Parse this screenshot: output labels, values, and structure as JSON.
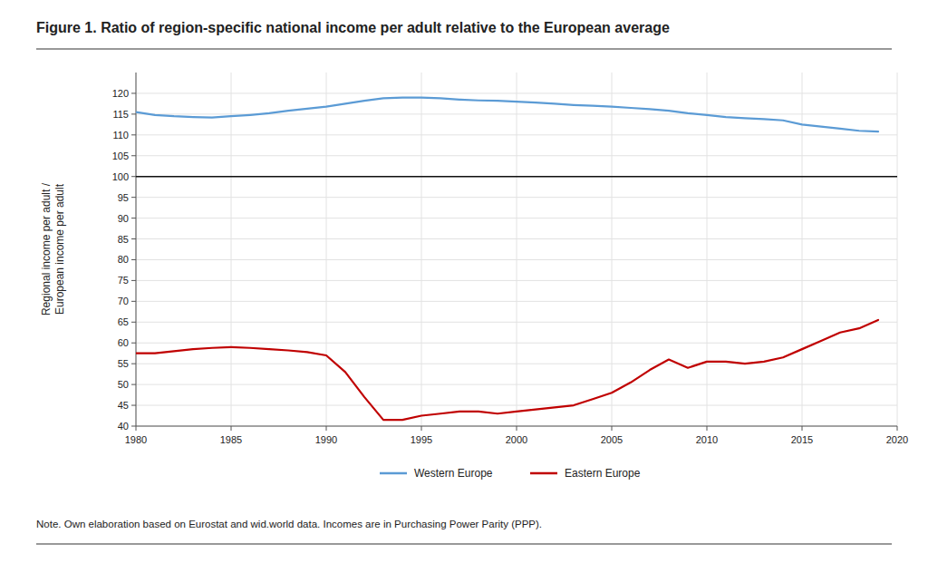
{
  "chart_data": {
    "type": "line",
    "title": "Figure 1. Ratio of region-specific national income per adult relative to the European average",
    "y_label": "Regional income per adult /\nEuropean income per adult",
    "annotations": [
      "Note. Own elaboration based on Eurostat and wid.world data. Incomes are in Purchasing Power Parity (PPP)."
    ],
    "x": [
      1980,
      1981,
      1982,
      1983,
      1984,
      1985,
      1986,
      1987,
      1988,
      1989,
      1990,
      1991,
      1992,
      1993,
      1994,
      1995,
      1996,
      1997,
      1998,
      1999,
      2000,
      2001,
      2002,
      2003,
      2004,
      2005,
      2006,
      2007,
      2008,
      2009,
      2010,
      2011,
      2012,
      2013,
      2014,
      2015,
      2016,
      2017,
      2018,
      2019
    ],
    "series": [
      {
        "name": "Western Europe",
        "color": "#5B9BD5",
        "values": [
          115.5,
          114.8,
          114.5,
          114.3,
          114.2,
          114.5,
          114.8,
          115.2,
          115.8,
          116.3,
          116.8,
          117.5,
          118.2,
          118.8,
          119.0,
          119.0,
          118.8,
          118.5,
          118.3,
          118.2,
          118.0,
          117.8,
          117.5,
          117.2,
          117.0,
          116.8,
          116.5,
          116.2,
          115.8,
          115.2,
          114.8,
          114.3,
          114.0,
          113.8,
          113.5,
          112.5,
          112.0,
          111.5,
          111.0,
          110.8
        ]
      },
      {
        "name": "Eastern Europe",
        "color": "#C00000",
        "values": [
          57.5,
          57.5,
          58.0,
          58.5,
          58.8,
          59.0,
          58.8,
          58.5,
          58.2,
          57.8,
          57.0,
          53.0,
          47.0,
          41.5,
          41.5,
          42.5,
          43.0,
          43.5,
          43.5,
          43.0,
          43.5,
          44.0,
          44.5,
          45.0,
          46.5,
          48.0,
          50.5,
          53.5,
          56.0,
          54.0,
          55.5,
          55.5,
          55.0,
          55.5,
          56.5,
          58.5,
          60.5,
          62.5,
          63.5,
          65.5
        ]
      }
    ],
    "reference_line": 100,
    "xlim": [
      1980,
      2020
    ],
    "ylim": [
      40,
      125
    ],
    "xticks": [
      1980,
      1985,
      1990,
      1995,
      2000,
      2005,
      2010,
      2015,
      2020
    ],
    "yticks": [
      40,
      45,
      50,
      55,
      60,
      65,
      70,
      75,
      80,
      85,
      90,
      95,
      100,
      105,
      110,
      115,
      120
    ],
    "grid": true,
    "legend": "bottom"
  }
}
